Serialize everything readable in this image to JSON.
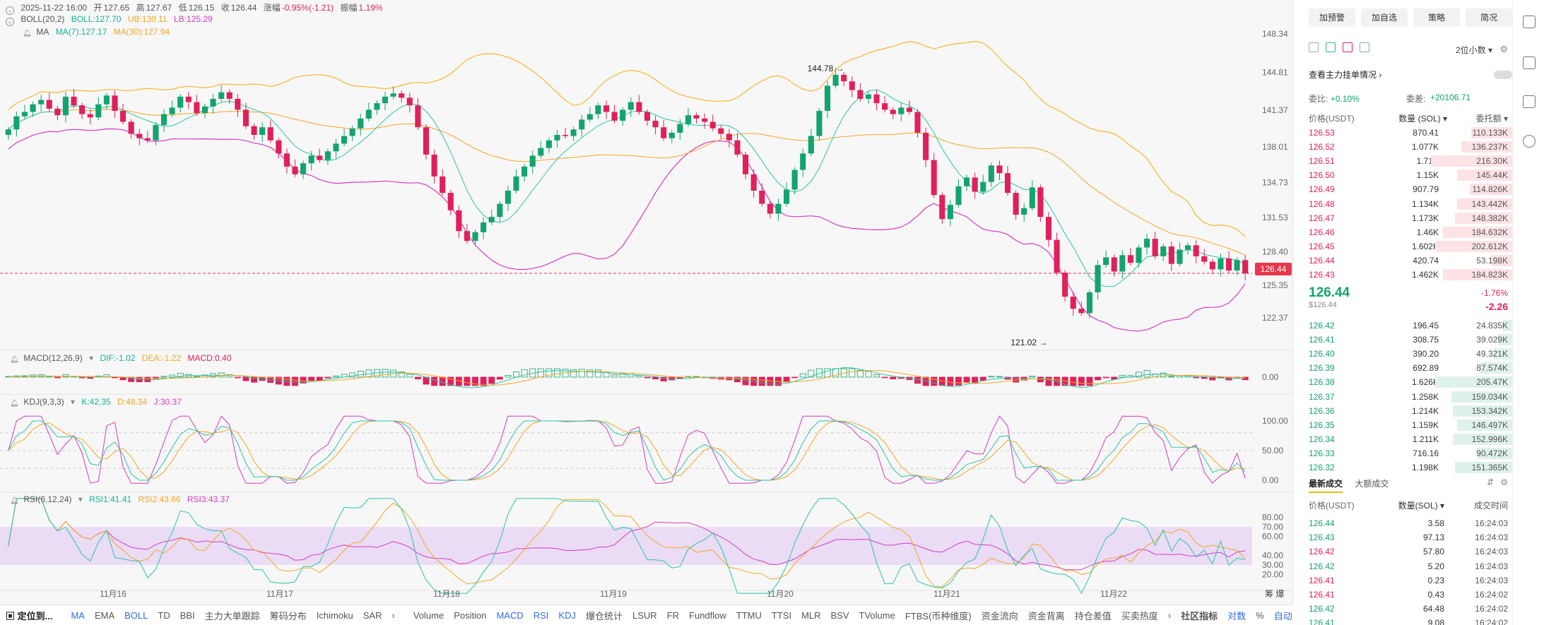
{
  "header": {
    "datetime": "2025-11-22 16:00",
    "open_label": "开",
    "open": "127.65",
    "high_label": "高",
    "high": "127.67",
    "low_label": "低",
    "low": "126.15",
    "close_label": "收",
    "close": "126.44",
    "change_label": "涨幅",
    "change": "-0.95%(-1.21)",
    "amp_label": "振幅",
    "amp": "1.19%"
  },
  "indicators": {
    "boll": {
      "name": "BOLL(20,2)",
      "mid": "BOLL:127.70",
      "ub": "UB:130.11",
      "lb": "LB:125.29"
    },
    "ma": {
      "name": "MA",
      "ma7": "MA(7):127.17",
      "ma30": "MA(30):127.94"
    },
    "macd": {
      "name": "MACD(12,26,9)",
      "dif": "DIF:-1.02",
      "dea": "DEA:-1.22",
      "macd": "MACD:0.40"
    },
    "kdj": {
      "name": "KDJ(9,3,3)",
      "k": "K:42.35",
      "d": "D:48.34",
      "j": "J:30.37"
    },
    "rsi": {
      "name": "RSI(6,12,24)",
      "rsi1": "RSI1:41.41",
      "rsi2": "RSI2:43.66",
      "rsi3": "RSI3:43.37"
    }
  },
  "price_axis": [
    "148.34",
    "144.81",
    "141.37",
    "138.01",
    "134.73",
    "131.53",
    "128.40",
    "125.35",
    "122.37"
  ],
  "macd_axis": [
    "0.00"
  ],
  "kdj_axis": [
    "100.00",
    "50.00",
    "0.00"
  ],
  "rsi_axis": [
    "80.00",
    "70.00",
    "60.00",
    "40.00",
    "30.00",
    "20.00"
  ],
  "current_price_tag": "126.44",
  "high_marker": "144.78",
  "low_marker": "121.02",
  "time_axis": [
    "11月16",
    "11月17",
    "11月18",
    "11月19",
    "11月20",
    "11月21",
    "11月22"
  ],
  "bottom_bar": {
    "locate": "定位到...",
    "items": [
      "MA",
      "EMA",
      "BOLL",
      "TD",
      "BBI",
      "主力大单跟踪",
      "筹码分布",
      "Ichimoku",
      "SAR"
    ],
    "items2": [
      "Volume",
      "Position",
      "MACD",
      "RSI",
      "KDJ",
      "爆仓统计",
      "LSUR",
      "FR",
      "Fundflow",
      "TTMU",
      "TTSI",
      "MLR",
      "BSV",
      "TVolume",
      "FTBS(币种维度)",
      "资金流向",
      "资金背离",
      "持仓差值",
      "买卖热度"
    ],
    "right": [
      "社区指标",
      "对数",
      "%",
      "自动"
    ],
    "corner": "筹 爆"
  },
  "right_panel": {
    "buttons": [
      "加预警",
      "加自选",
      "策略",
      "简况"
    ],
    "decimal": "2位小数",
    "main_orders_link": "查看主力挂单情况",
    "ratio_label": "委比:",
    "ratio_value": "+0.10%",
    "diff_label": "委差:",
    "diff_value": "+20106.71",
    "col_price": "价格(USDT)",
    "col_qty": "数量 (SOL)",
    "col_total": "委托额",
    "asks": [
      {
        "price": "126.53",
        "qty": "870.41",
        "total": "110.133K",
        "fill": 0.2
      },
      {
        "price": "126.52",
        "qty": "1.077K",
        "total": "136.237K",
        "fill": 0.25
      },
      {
        "price": "126.51",
        "qty": "1.71K",
        "total": "216.30K",
        "fill": 0.4
      },
      {
        "price": "126.50",
        "qty": "1.15K",
        "total": "145.44K",
        "fill": 0.27
      },
      {
        "price": "126.49",
        "qty": "907.79",
        "total": "114.826K",
        "fill": 0.21
      },
      {
        "price": "126.48",
        "qty": "1.134K",
        "total": "143.442K",
        "fill": 0.27
      },
      {
        "price": "126.47",
        "qty": "1.173K",
        "total": "148.382K",
        "fill": 0.28
      },
      {
        "price": "126.46",
        "qty": "1.46K",
        "total": "184.632K",
        "fill": 0.34
      },
      {
        "price": "126.45",
        "qty": "1.602K",
        "total": "202.612K",
        "fill": 0.38
      },
      {
        "price": "126.44",
        "qty": "420.74",
        "total": "53.198K",
        "fill": 0.1
      },
      {
        "price": "126.43",
        "qty": "1.462K",
        "total": "184.823K",
        "fill": 0.34
      }
    ],
    "mid_price": "126.44",
    "mid_usd": "$126.44",
    "mid_pct": "-1.76%",
    "mid_change": "-2.26",
    "bids": [
      {
        "price": "126.42",
        "qty": "196.45",
        "total": "24.835K",
        "fill": 0.05
      },
      {
        "price": "126.41",
        "qty": "308.75",
        "total": "39.029K",
        "fill": 0.07
      },
      {
        "price": "126.40",
        "qty": "390.20",
        "total": "49.321K",
        "fill": 0.09
      },
      {
        "price": "126.39",
        "qty": "692.89",
        "total": "87.574K",
        "fill": 0.16
      },
      {
        "price": "126.38",
        "qty": "1.626K",
        "total": "205.47K",
        "fill": 0.38
      },
      {
        "price": "126.37",
        "qty": "1.258K",
        "total": "159.034K",
        "fill": 0.3
      },
      {
        "price": "126.36",
        "qty": "1.214K",
        "total": "153.342K",
        "fill": 0.29
      },
      {
        "price": "126.35",
        "qty": "1.159K",
        "total": "146.497K",
        "fill": 0.27
      },
      {
        "price": "126.34",
        "qty": "1.211K",
        "total": "152.996K",
        "fill": 0.29
      },
      {
        "price": "126.33",
        "qty": "716.16",
        "total": "90.472K",
        "fill": 0.17
      },
      {
        "price": "126.32",
        "qty": "1.198K",
        "total": "151.365K",
        "fill": 0.28
      }
    ],
    "trades_tab": "最新成交",
    "big_tab": "大额成交",
    "trade_cols": {
      "price": "价格(USDT)",
      "qty": "数量(SOL)",
      "time": "成交时间"
    },
    "trades": [
      {
        "price": "126.44",
        "qty": "3.58",
        "time": "16:24:03",
        "side": "bid"
      },
      {
        "price": "126.43",
        "qty": "97.13",
        "time": "16:24:03",
        "side": "bid"
      },
      {
        "price": "126.42",
        "qty": "57.80",
        "time": "16:24:03",
        "side": "ask"
      },
      {
        "price": "126.42",
        "qty": "5.20",
        "time": "16:24:03",
        "side": "bid"
      },
      {
        "price": "126.41",
        "qty": "0.23",
        "time": "16:24:03",
        "side": "ask"
      },
      {
        "price": "126.41",
        "qty": "0.43",
        "time": "16:24:02",
        "side": "ask"
      },
      {
        "price": "126.42",
        "qty": "64.48",
        "time": "16:24:02",
        "side": "bid"
      },
      {
        "price": "126.41",
        "qty": "9.08",
        "time": "16:24:02",
        "side": "bid"
      }
    ]
  },
  "chart_data": {
    "type": "candlestick",
    "price_range": [
      121.02,
      148.34
    ],
    "up_color": "#13a36e",
    "down_color": "#e0205a",
    "closes": [
      139.6,
      140.8,
      141.2,
      141.9,
      142.3,
      141.5,
      140.9,
      142.6,
      141.8,
      141.0,
      140.7,
      141.9,
      142.7,
      141.3,
      140.3,
      139.2,
      138.8,
      138.6,
      140.0,
      141.0,
      141.6,
      142.6,
      142.1,
      141.1,
      141.7,
      142.4,
      143.0,
      142.4,
      141.4,
      139.9,
      139.1,
      139.8,
      138.6,
      137.4,
      136.2,
      135.5,
      136.5,
      137.2,
      136.8,
      137.6,
      138.3,
      139.0,
      139.7,
      140.6,
      141.4,
      142.0,
      142.6,
      142.9,
      142.5,
      141.8,
      139.8,
      137.3,
      135.3,
      133.8,
      132.2,
      130.3,
      129.4,
      130.2,
      131.1,
      131.6,
      132.8,
      134.0,
      135.3,
      136.2,
      137.2,
      137.9,
      138.6,
      139.1,
      139.0,
      139.6,
      140.5,
      141.0,
      141.8,
      141.2,
      140.4,
      141.4,
      142.1,
      141.2,
      140.4,
      139.8,
      138.8,
      139.3,
      140.1,
      140.9,
      140.6,
      140.3,
      139.7,
      139.2,
      138.6,
      137.3,
      135.5,
      134.0,
      132.8,
      131.9,
      132.8,
      134.1,
      135.9,
      137.4,
      139.0,
      141.3,
      143.6,
      144.6,
      144.0,
      143.2,
      142.4,
      142.8,
      142.0,
      141.4,
      141.0,
      141.6,
      141.2,
      139.3,
      136.8,
      133.6,
      131.4,
      132.7,
      134.4,
      135.2,
      133.9,
      134.8,
      136.3,
      135.6,
      133.8,
      131.8,
      132.4,
      134.3,
      131.6,
      129.5,
      126.5,
      124.3,
      123.2,
      122.8,
      124.7,
      127.2,
      127.9,
      126.6,
      128.1,
      127.4,
      128.8,
      129.6,
      128.0,
      128.9,
      127.3,
      128.6,
      129.0,
      128.0,
      127.5,
      126.8,
      127.8,
      126.7,
      127.65,
      126.44
    ]
  }
}
